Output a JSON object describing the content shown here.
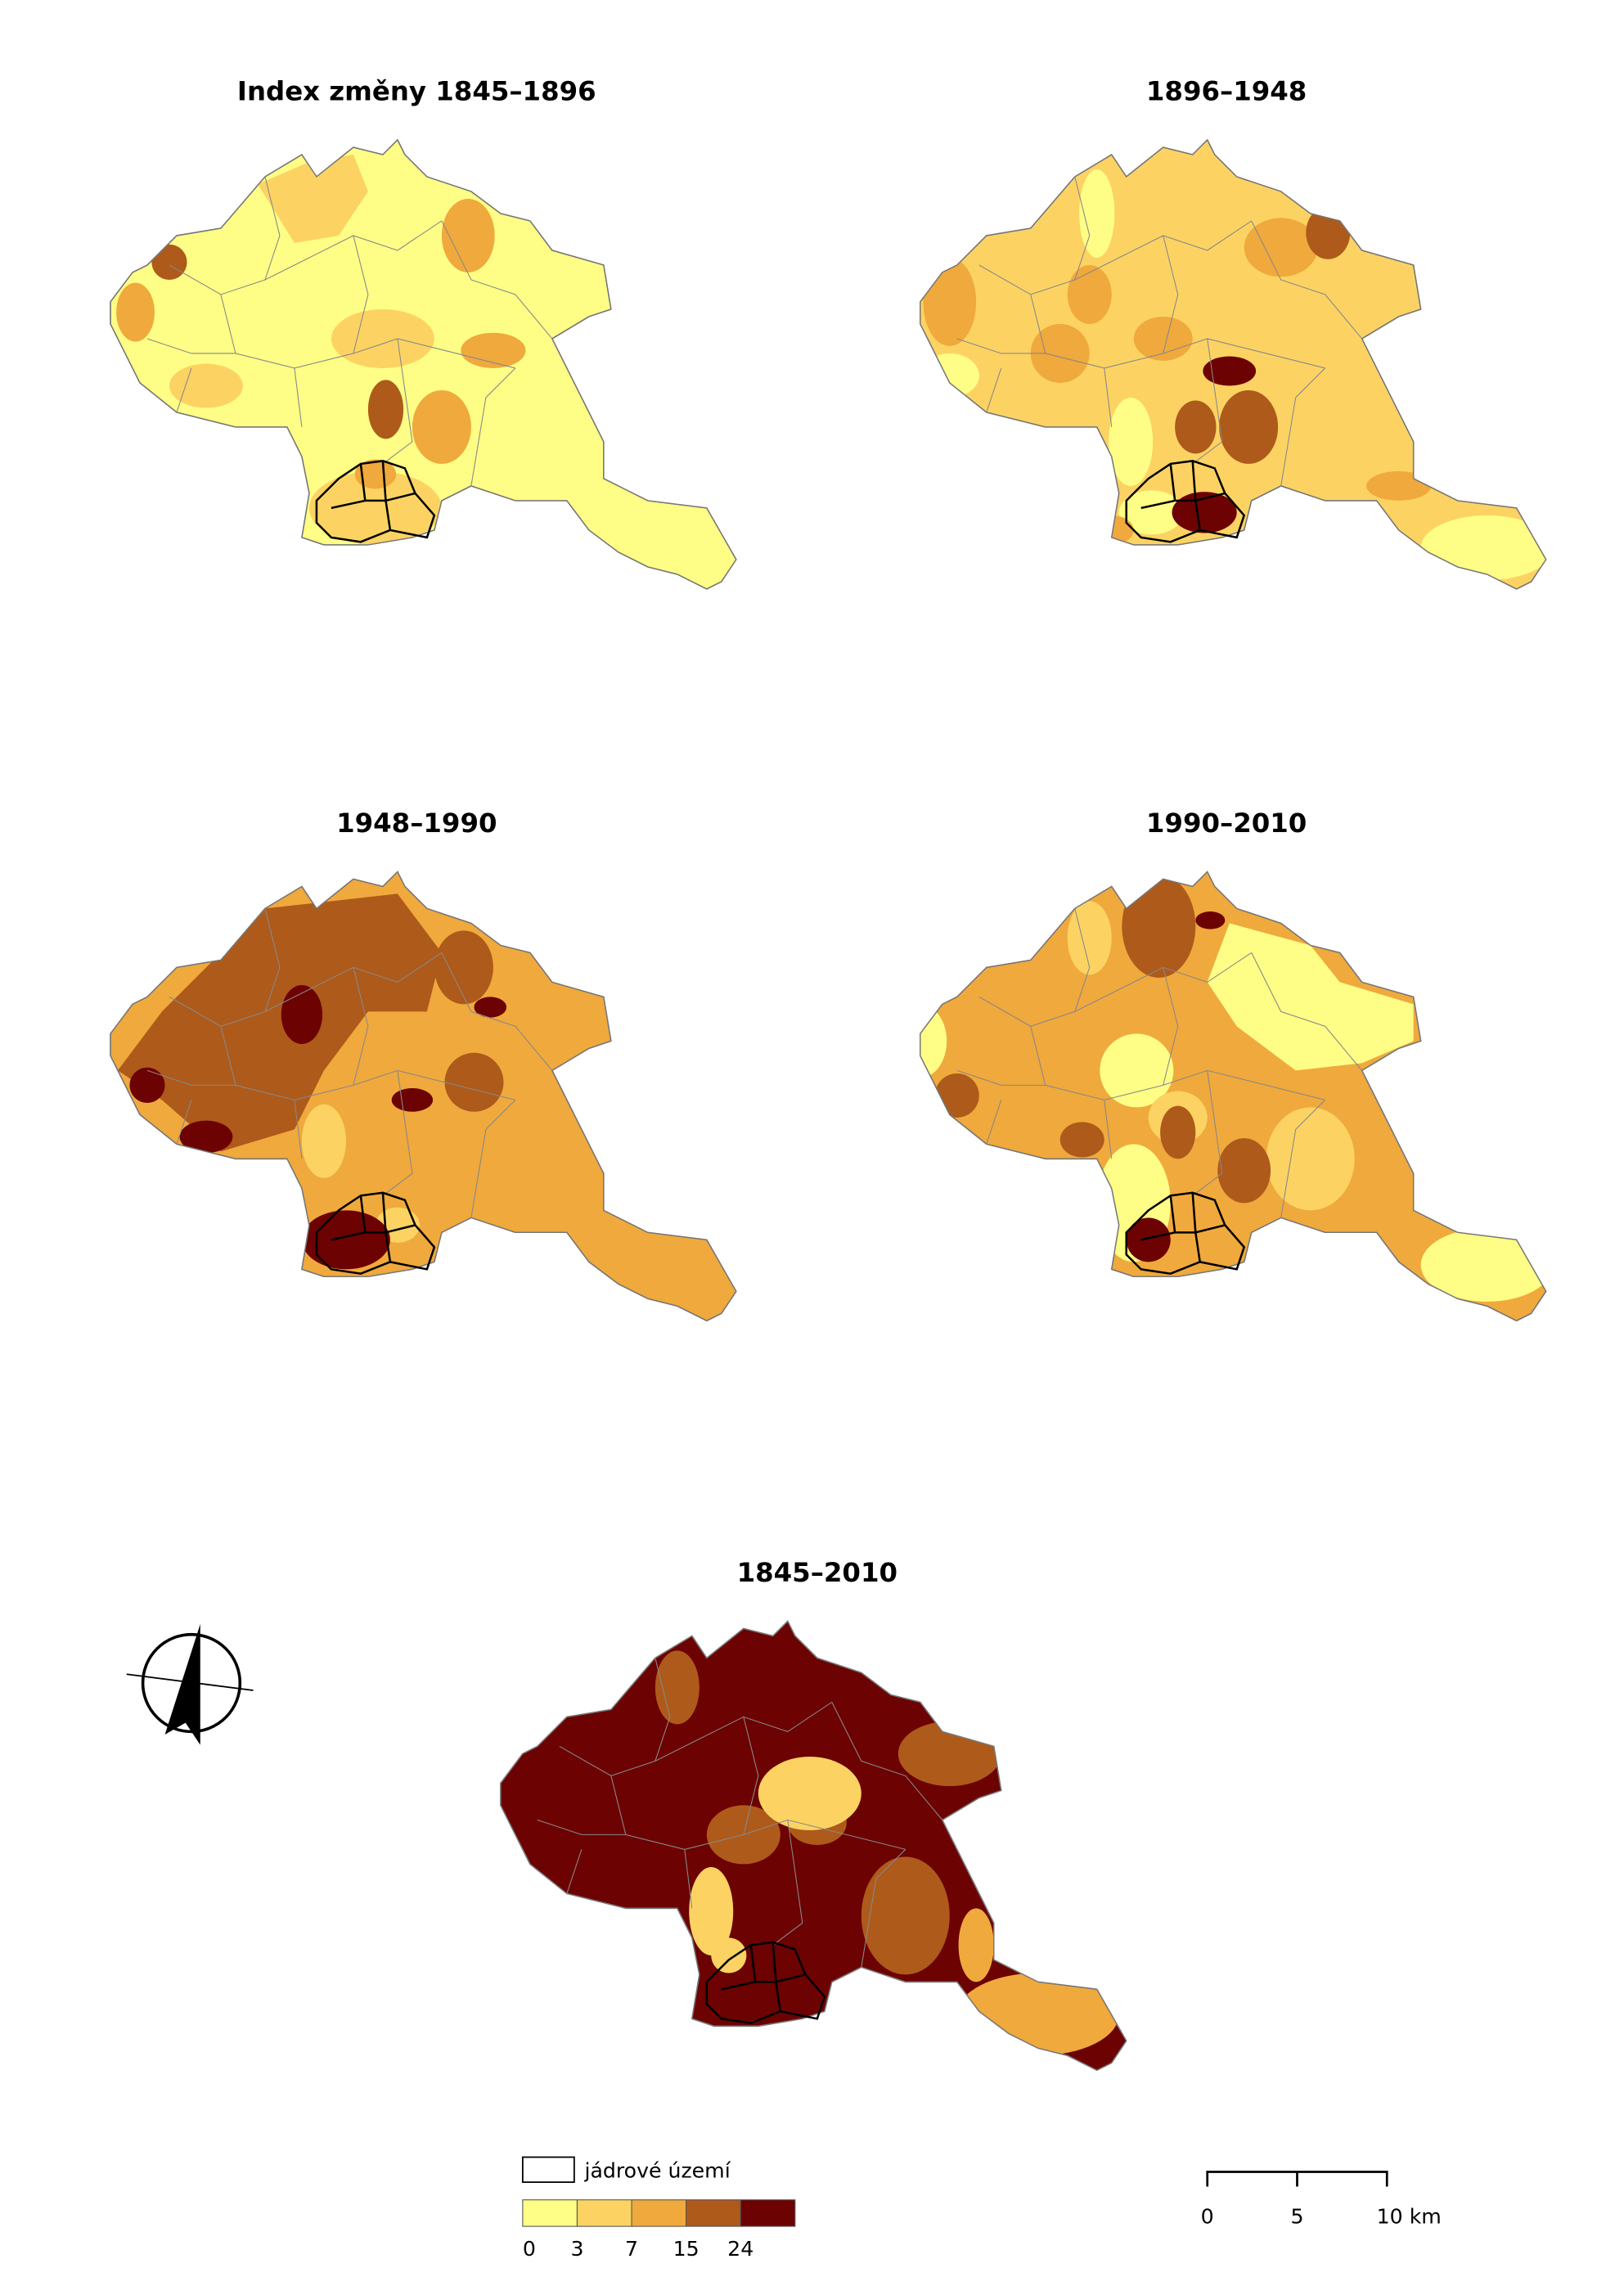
{
  "maps": [
    {
      "title": "Index změny 1845–1896"
    },
    {
      "title": "1896–1948"
    },
    {
      "title": "1948–1990"
    },
    {
      "title": "1990–2010"
    },
    {
      "title": "1845–2010"
    }
  ],
  "legend": {
    "core_label": "jádrové území",
    "colors": [
      "#fefe86",
      "#fcd363",
      "#f0a93c",
      "#ae5a1b",
      "#6c0202"
    ],
    "breaks": [
      0,
      3,
      7,
      15,
      24
    ]
  },
  "scale_bar": {
    "labels": [
      "0",
      "5",
      "10 km"
    ]
  }
}
